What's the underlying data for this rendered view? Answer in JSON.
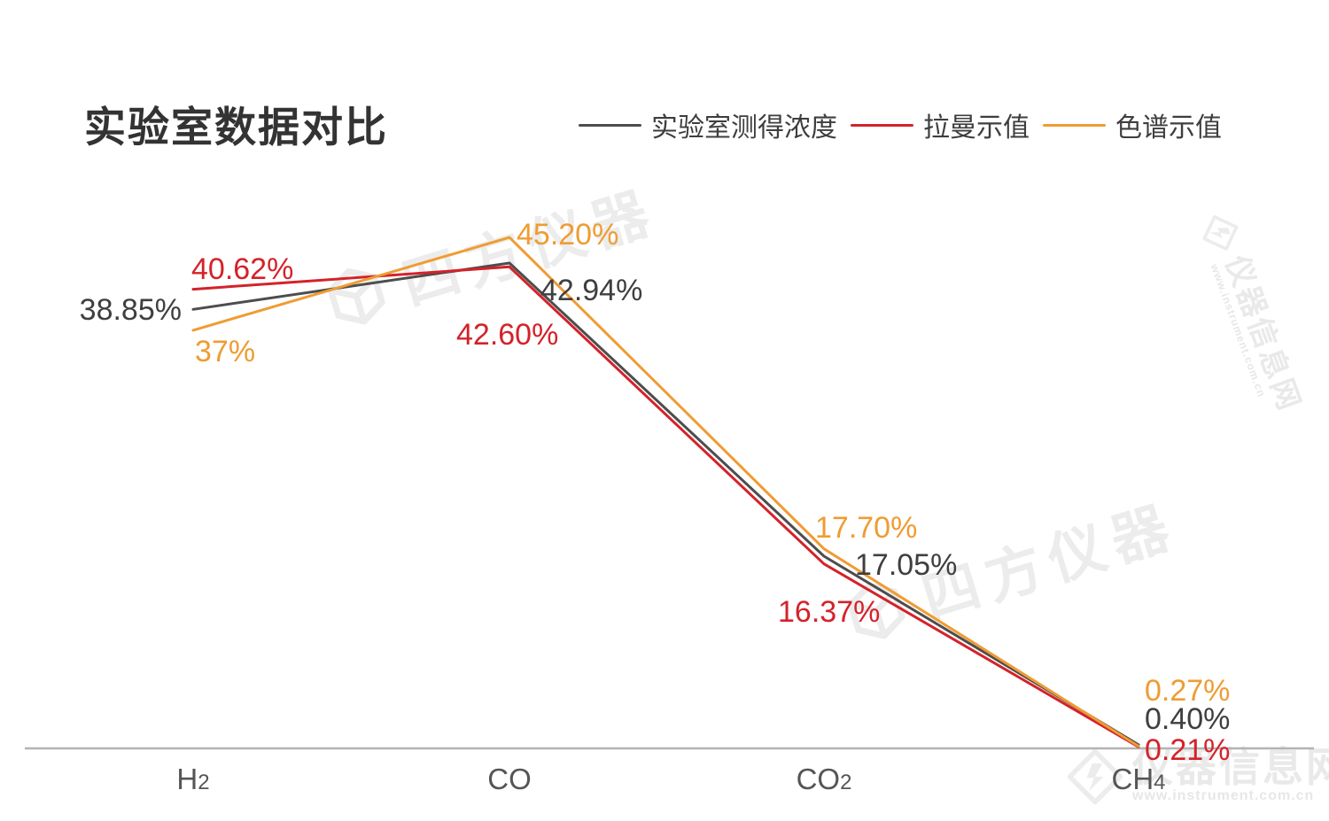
{
  "title": "实验室数据对比",
  "legend": {
    "position": "top-right",
    "items": [
      {
        "id": "lab",
        "label": "实验室测得浓度",
        "color": "#4d4d4d"
      },
      {
        "id": "raman",
        "label": "拉曼示值",
        "color": "#d4222a"
      },
      {
        "id": "gc",
        "label": "色谱示值",
        "color": "#ef9c33"
      }
    ]
  },
  "chart_data": {
    "type": "line",
    "title": "实验室数据对比",
    "categories": [
      "H2",
      "CO",
      "CO2",
      "CH4"
    ],
    "categories_display": [
      {
        "base": "H",
        "sub": "2"
      },
      {
        "base": "CO",
        "sub": ""
      },
      {
        "base": "CO",
        "sub": "2"
      },
      {
        "base": "CH",
        "sub": "4"
      }
    ],
    "unit": "%",
    "series": [
      {
        "id": "lab",
        "name": "实验室测得浓度",
        "color": "#4d4d4d",
        "label_color": "#3f3f3f",
        "values": [
          38.85,
          42.94,
          17.05,
          0.4
        ],
        "labels": [
          "38.85%",
          "42.94%",
          "17.05%",
          "0.40%"
        ]
      },
      {
        "id": "raman",
        "name": "拉曼示值",
        "color": "#d4222a",
        "label_color": "#d4222a",
        "values": [
          40.62,
          42.6,
          16.37,
          0.21
        ],
        "labels": [
          "40.62%",
          "42.60%",
          "16.37%",
          "0.21%"
        ]
      },
      {
        "id": "gc",
        "name": "色谱示值",
        "color": "#ef9c33",
        "label_color": "#ef9c33",
        "values": [
          37,
          45.2,
          17.7,
          0.27
        ],
        "labels": [
          "37%",
          "45.20%",
          "17.70%",
          "0.27%"
        ]
      }
    ],
    "ylim": [
      0,
      48
    ],
    "y_axis_visible": false,
    "grid": false,
    "legend_position": "top-right",
    "axis_color": "#b3b3b3",
    "xlabel": "",
    "ylabel": ""
  },
  "watermarks": {
    "brand": "四方仪器",
    "site": "仪器信息网",
    "site_url": "www.instrument.com.cn"
  }
}
